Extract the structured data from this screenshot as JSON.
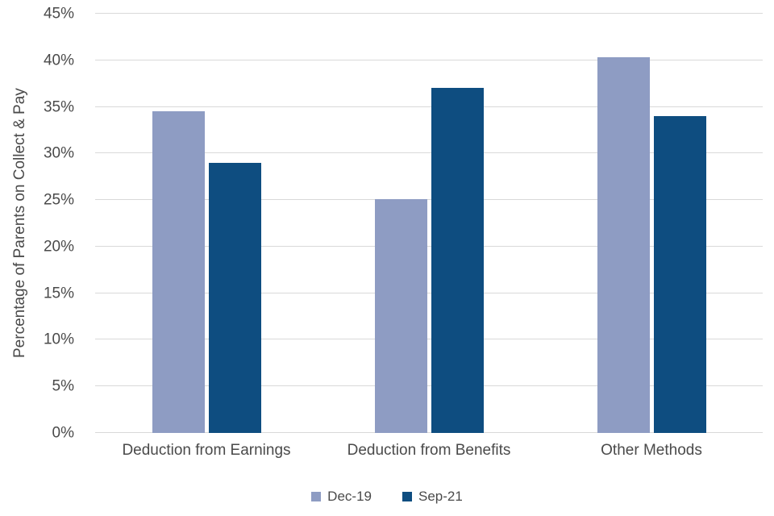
{
  "chart_data": {
    "type": "bar",
    "title": "",
    "xlabel": "",
    "ylabel": "Percentage of Parents on Collect & Pay",
    "categories": [
      "Deduction from Earnings",
      "Deduction from Benefits",
      "Other Methods"
    ],
    "series": [
      {
        "name": "Dec-19",
        "color": "#8e9cc3",
        "values": [
          34.5,
          25.1,
          40.3
        ]
      },
      {
        "name": "Sep-21",
        "color": "#0e4d80",
        "values": [
          29.0,
          37.0,
          34.0
        ]
      }
    ],
    "ylim": [
      0,
      45
    ],
    "ytick_step": 5,
    "ytick_suffix": "%",
    "grid": true,
    "legend_position": "bottom",
    "colors": {
      "gridline": "#d9d9d9",
      "axis_text": "#4a4a4a",
      "background": "#ffffff"
    }
  }
}
